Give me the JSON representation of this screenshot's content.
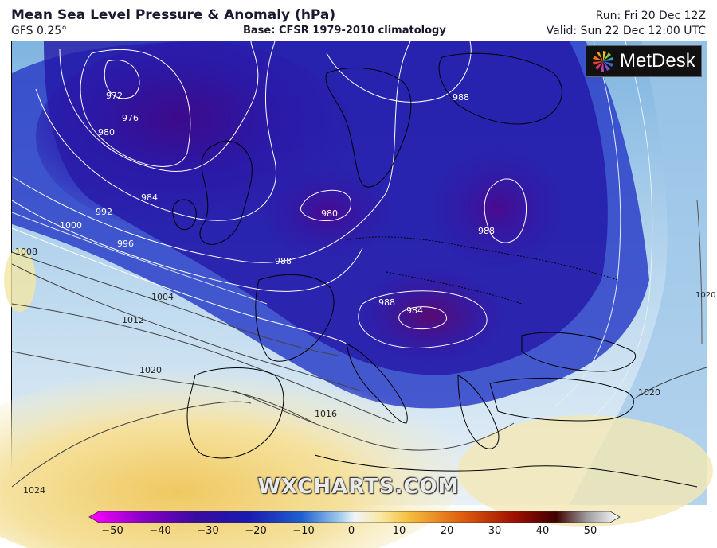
{
  "header": {
    "title": "Mean Sea Level Pressure & Anomaly (hPa)",
    "model": "GFS 0.25°",
    "base": "Base: CFSR 1979-2010 climatology",
    "run": "Run: Fri 20 Dec 12Z",
    "valid": "Valid: Sun 22 Dec 12:00 UTC"
  },
  "logo": {
    "text": "MetDesk"
  },
  "watermark": "WXCHARTS.COM",
  "isobar_labels": [
    "972",
    "976",
    "980",
    "984",
    "992",
    "1000",
    "996",
    "1008",
    "988",
    "980",
    "988",
    "988",
    "1004",
    "1012",
    "988",
    "984",
    "1020",
    "1016",
    "1020",
    "1024",
    "1020"
  ],
  "colorbar": {
    "ticks": [
      "−50",
      "−40",
      "−30",
      "−20",
      "−10",
      "0",
      "10",
      "20",
      "30",
      "40",
      "50"
    ],
    "colors": [
      "#e000e0",
      "#8a00c8",
      "#3a0aa0",
      "#1a1ab0",
      "#1f4fd0",
      "#5aa0e0",
      "#e8f0f8",
      "#f5e8a8",
      "#f0b030",
      "#d04000",
      "#700000",
      "#ffffff"
    ]
  }
}
